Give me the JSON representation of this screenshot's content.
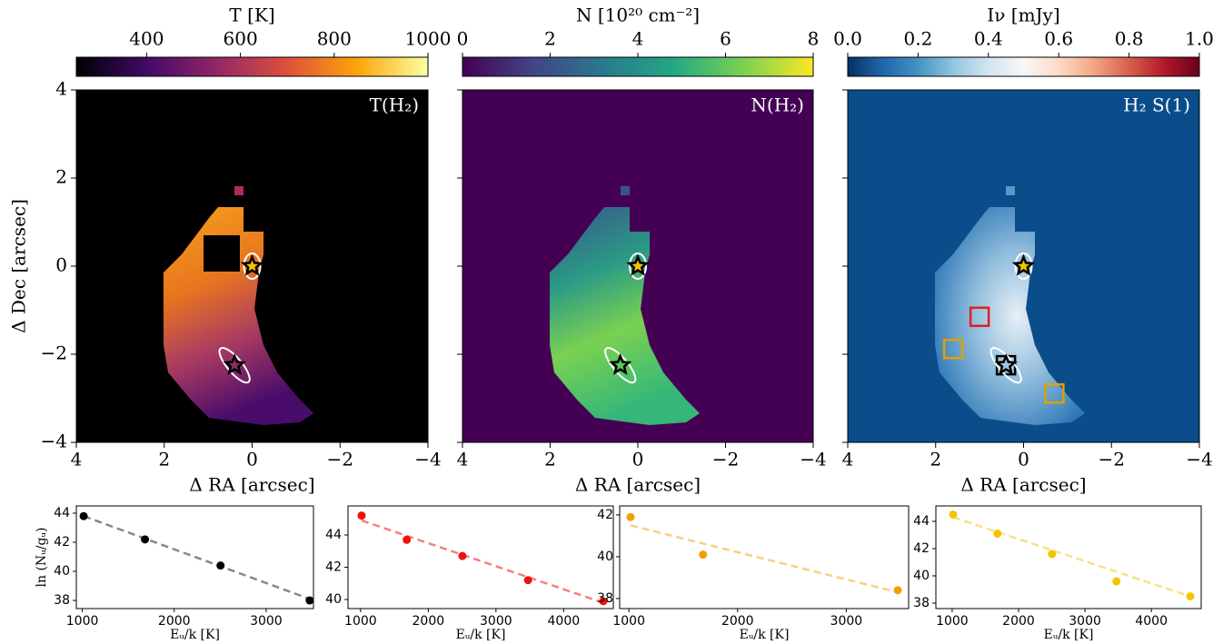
{
  "chart_data": [
    {
      "type": "image",
      "title": "T(H₂)",
      "xlabel": "Δ RA [arcsec]",
      "ylabel": "Δ Dec [arcsec]",
      "xlim": [
        4,
        -4
      ],
      "ylim": [
        -4,
        4
      ],
      "xticks": [
        4,
        2,
        0,
        {
          "value": -2,
          "label": "−2"
        },
        {
          "value": -4,
          "label": "−4"
        }
      ],
      "yticks": [
        {
          "value": -4,
          "label": "−4"
        },
        {
          "value": -2,
          "label": "−2"
        },
        0,
        2,
        4
      ],
      "yticklabels": true,
      "colorbar": {
        "label": "T [K]",
        "lim": [
          250,
          1000
        ],
        "ticks": [
          400,
          600,
          800,
          1000
        ],
        "cmap": [
          "#000004",
          "#420a68",
          "#932667",
          "#dd513a",
          "#fca50a",
          "#fcffa4"
        ]
      },
      "markers": [
        {
          "shape": "star",
          "x": 0,
          "y": 0,
          "color": "#f5c400"
        },
        {
          "shape": "star",
          "x": 0.4,
          "y": -2.25,
          "color": "#000000"
        }
      ]
    },
    {
      "type": "image",
      "title": "N(H₂)",
      "xlabel": "Δ RA [arcsec]",
      "xlim": [
        4,
        -4
      ],
      "ylim": [
        -4,
        4
      ],
      "xticks": [
        4,
        2,
        0,
        {
          "value": -2,
          "label": "−2"
        },
        {
          "value": -4,
          "label": "−4"
        }
      ],
      "yticks": [
        -4,
        -2,
        0,
        2,
        4
      ],
      "yticklabels": false,
      "colorbar": {
        "label": "N [10²⁰ cm⁻²]",
        "lim": [
          0,
          8
        ],
        "ticks": [
          0,
          2,
          4,
          6,
          8
        ],
        "cmap": [
          "#440154",
          "#414487",
          "#2a788e",
          "#22a884",
          "#7ad151",
          "#fde725"
        ]
      },
      "markers": [
        {
          "shape": "star",
          "x": 0,
          "y": 0,
          "color": "#f5c400"
        },
        {
          "shape": "star",
          "x": 0.4,
          "y": -2.25,
          "color": "#000000"
        }
      ]
    },
    {
      "type": "image",
      "title": "H₂ S(1)",
      "xlabel": "Δ RA [arcsec]",
      "xlim": [
        4,
        -4
      ],
      "ylim": [
        -4,
        4
      ],
      "xticks": [
        4,
        2,
        0,
        {
          "value": -2,
          "label": "−2"
        },
        {
          "value": -4,
          "label": "−4"
        }
      ],
      "yticks": [
        -4,
        -2,
        0,
        2,
        4
      ],
      "yticklabels": false,
      "colorbar": {
        "label": "Iν [mJy]",
        "lim": [
          0,
          1
        ],
        "ticks": [
          {
            "value": 0,
            "label": "0.0"
          },
          {
            "value": 0.2,
            "label": "0.2"
          },
          {
            "value": 0.4,
            "label": "0.4"
          },
          {
            "value": 0.6,
            "label": "0.6"
          },
          {
            "value": 0.8,
            "label": "0.8"
          },
          {
            "value": 1,
            "label": "1.0"
          }
        ],
        "cmap": [
          "#053061",
          "#2166ac",
          "#4393c3",
          "#92c5de",
          "#d1e5f0",
          "#f7f7f7",
          "#fddbc7",
          "#f4a582",
          "#d6604d",
          "#b2182b",
          "#67001f"
        ]
      },
      "markers": [
        {
          "shape": "star",
          "x": 0,
          "y": 0,
          "color": "#f5c400"
        },
        {
          "shape": "square",
          "x": 0.4,
          "y": -2.25,
          "color": "#000000"
        },
        {
          "shape": "star",
          "x": 0.4,
          "y": -2.25,
          "color": "#000000"
        },
        {
          "shape": "square",
          "x": 1.0,
          "y": -1.15,
          "color": "#e02020"
        },
        {
          "shape": "square",
          "x": 1.6,
          "y": -1.88,
          "color": "#e0a000"
        },
        {
          "shape": "square",
          "x": -0.7,
          "y": -2.89,
          "color": "#e0a000"
        }
      ]
    },
    {
      "type": "scatter",
      "xlabel": "Eᵤ/k [K]",
      "ylabel": "ln (Nᵤ/gᵤ)",
      "color": "#000000",
      "fit_color": "#888888",
      "x": [
        1015,
        1682,
        2504,
        3474
      ],
      "values": [
        43.8,
        42.2,
        40.4,
        38.0
      ],
      "fit_x": [
        1015,
        3474
      ],
      "fit_values": [
        43.8,
        38.1
      ],
      "xlim": [
        935,
        3515
      ],
      "ylim": [
        37.44,
        44.5
      ],
      "xticks": [
        1000,
        2000,
        3000
      ],
      "yticks": [
        38,
        40,
        42,
        44
      ]
    },
    {
      "type": "scatter",
      "xlabel": "Eᵤ/k [K]",
      "color": "#ee1111",
      "fit_color": "#f48080",
      "x": [
        1015,
        1682,
        2504,
        3474,
        4586
      ],
      "values": [
        45.2,
        43.7,
        42.7,
        41.2,
        39.9
      ],
      "fit_x": [
        1015,
        4586
      ],
      "fit_values": [
        44.9,
        39.8
      ],
      "xlim": [
        814,
        4734
      ],
      "ylim": [
        39.44,
        45.8
      ],
      "xticks": [
        1000,
        2000,
        3000,
        4000
      ],
      "yticks": [
        40,
        42,
        44
      ]
    },
    {
      "type": "scatter",
      "xlabel": "Eᵤ/k [K]",
      "color": "#f0a000",
      "fit_color": "#f8d080",
      "x": [
        1015,
        1682,
        3474
      ],
      "values": [
        41.9,
        40.1,
        38.4
      ],
      "fit_x": [
        1015,
        3474
      ],
      "fit_values": [
        41.5,
        38.3
      ],
      "xlim": [
        915,
        3574
      ],
      "ylim": [
        37.52,
        42.43
      ],
      "xticks": [
        1000,
        2000,
        3000
      ],
      "yticks": [
        38,
        40,
        42
      ]
    },
    {
      "type": "scatter",
      "xlabel": "Eᵤ/k [K]",
      "color": "#f5c400",
      "fit_color": "#fae080",
      "x": [
        1015,
        1682,
        2504,
        3474,
        4586
      ],
      "values": [
        44.5,
        43.1,
        41.6,
        39.6,
        38.5
      ],
      "fit_x": [
        1015,
        4586
      ],
      "fit_values": [
        44.3,
        38.5
      ],
      "xlim": [
        755,
        4750
      ],
      "ylim": [
        37.6,
        45.13
      ],
      "xticks": [
        1000,
        2000,
        3000,
        4000
      ],
      "yticks": [
        38,
        40,
        42,
        44
      ]
    }
  ]
}
